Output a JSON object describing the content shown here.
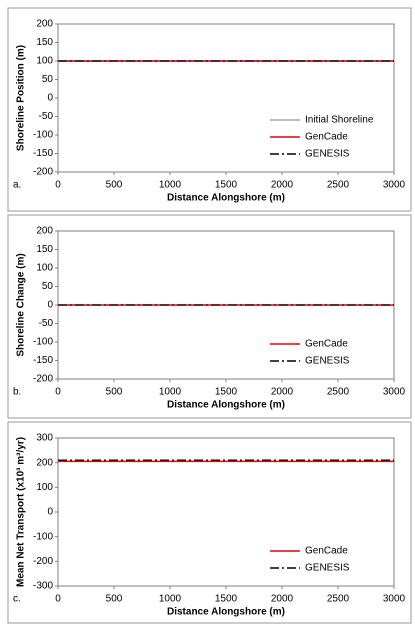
{
  "chart_data": [
    {
      "type": "line",
      "panel_label": "a.",
      "y_label": "Shoreline Position (m)",
      "x_label": "Distance Alongshore (m)",
      "x": [
        0,
        3000
      ],
      "xlim": [
        0,
        3000
      ],
      "xticks": [
        0,
        500,
        1000,
        1500,
        2000,
        2500,
        3000
      ],
      "ylim": [
        -200,
        200
      ],
      "yticks": [
        -200,
        -150,
        -100,
        -50,
        0,
        50,
        100,
        150,
        200
      ],
      "legend": "lower right",
      "series": [
        {
          "name": "Initial Shoreline",
          "color": "#a6a6a6",
          "dash": "solid",
          "values": [
            100,
            100
          ]
        },
        {
          "name": "GenCade",
          "color": "#e3000f",
          "dash": "solid",
          "values": [
            100,
            100
          ]
        },
        {
          "name": "GENESIS",
          "color": "#000000",
          "dash": "dashdot",
          "values": [
            100,
            100
          ]
        }
      ]
    },
    {
      "type": "line",
      "panel_label": "b.",
      "y_label": "Shoreline Change (m)",
      "x_label": "Distance Alongshore (m)",
      "x": [
        0,
        3000
      ],
      "xlim": [
        0,
        3000
      ],
      "xticks": [
        0,
        500,
        1000,
        1500,
        2000,
        2500,
        3000
      ],
      "ylim": [
        -200,
        200
      ],
      "yticks": [
        -200,
        -150,
        -100,
        -50,
        0,
        50,
        100,
        150,
        200
      ],
      "legend": "lower right",
      "series": [
        {
          "name": "GenCade",
          "color": "#e3000f",
          "dash": "solid",
          "values": [
            0,
            0
          ]
        },
        {
          "name": "GENESIS",
          "color": "#000000",
          "dash": "dashdot",
          "values": [
            0,
            0
          ]
        }
      ]
    },
    {
      "type": "line",
      "panel_label": "c.",
      "y_label": "Mean Net Transport (x10³ m³/yr)",
      "x_label": "Distance Alongshore (m)",
      "x": [
        0,
        3000
      ],
      "xlim": [
        0,
        3000
      ],
      "xticks": [
        0,
        500,
        1000,
        1500,
        2000,
        2500,
        3000
      ],
      "ylim": [
        -300,
        300
      ],
      "yticks": [
        -300,
        -200,
        -100,
        0,
        100,
        200,
        300
      ],
      "legend": "lower right",
      "series": [
        {
          "name": "GenCade",
          "color": "#e3000f",
          "dash": "solid",
          "values": [
            205,
            205
          ]
        },
        {
          "name": "GENESIS",
          "color": "#000000",
          "dash": "dashdot",
          "values": [
            210,
            210
          ]
        }
      ]
    }
  ]
}
